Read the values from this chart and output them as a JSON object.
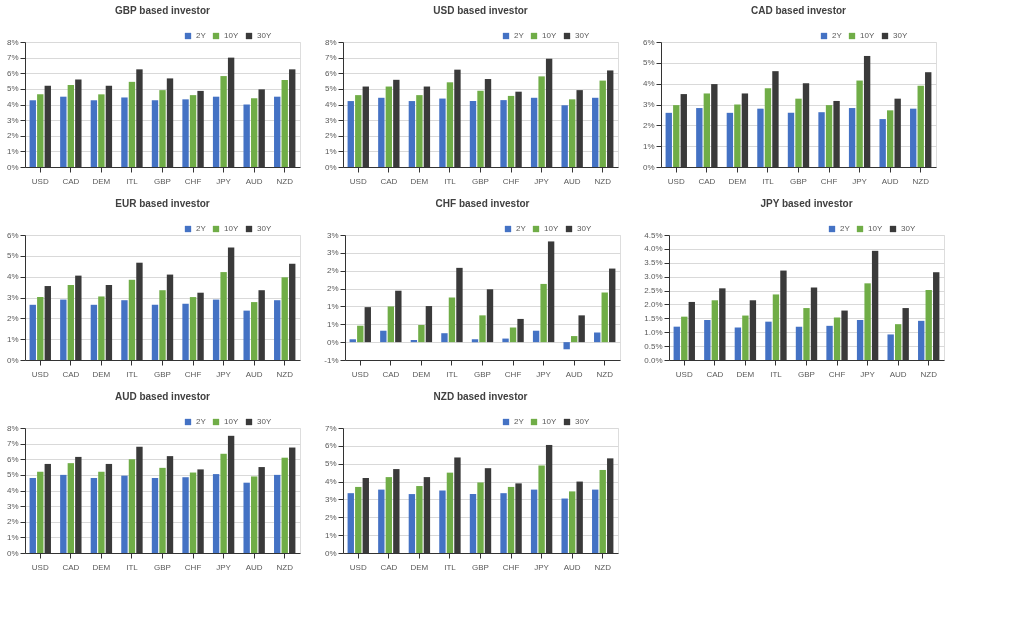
{
  "chart_data": [
    {
      "type": "bar",
      "title": "GBP based investor",
      "categories": [
        "USD",
        "CAD",
        "DEM",
        "ITL",
        "GBP",
        "CHF",
        "JPY",
        "AUD",
        "NZD"
      ],
      "grid": "y",
      "legend": "top right",
      "ylim": [
        0,
        8
      ],
      "yticks": [
        {
          "value": 0,
          "label": "0%"
        },
        {
          "value": 1,
          "label": "1%"
        },
        {
          "value": 2,
          "label": "2%"
        },
        {
          "value": 3,
          "label": "3%"
        },
        {
          "value": 4,
          "label": "4%"
        },
        {
          "value": 5,
          "label": "5%"
        },
        {
          "value": 6,
          "label": "6%"
        },
        {
          "value": 7,
          "label": "7%"
        },
        {
          "value": 8,
          "label": "8%"
        }
      ],
      "series": [
        {
          "name": "2Y",
          "color": "#4472c4",
          "values": [
            4.27,
            4.5,
            4.27,
            4.45,
            4.27,
            4.33,
            4.5,
            4.0,
            4.5
          ]
        },
        {
          "name": "10Y",
          "color": "#70ad47",
          "values": [
            4.65,
            5.25,
            4.65,
            5.45,
            4.92,
            4.6,
            5.82,
            4.4,
            5.57
          ]
        },
        {
          "name": "30Y",
          "color": "#3a3a3a",
          "values": [
            5.2,
            5.6,
            5.2,
            6.25,
            5.67,
            4.87,
            7.0,
            4.97,
            6.25
          ]
        }
      ]
    },
    {
      "type": "bar",
      "title": "USD based investor",
      "categories": [
        "USD",
        "CAD",
        "DEM",
        "ITL",
        "GBP",
        "CHF",
        "JPY",
        "AUD",
        "NZD"
      ],
      "grid": "y",
      "legend": "top right",
      "ylim": [
        0,
        8
      ],
      "yticks": [
        {
          "value": 0,
          "label": "0%"
        },
        {
          "value": 1,
          "label": "1%"
        },
        {
          "value": 2,
          "label": "2%"
        },
        {
          "value": 3,
          "label": "3%"
        },
        {
          "value": 4,
          "label": "4%"
        },
        {
          "value": 5,
          "label": "5%"
        },
        {
          "value": 6,
          "label": "6%"
        },
        {
          "value": 7,
          "label": "7%"
        },
        {
          "value": 8,
          "label": "8%"
        }
      ],
      "series": [
        {
          "name": "2Y",
          "color": "#4472c4",
          "values": [
            4.22,
            4.43,
            4.22,
            4.38,
            4.22,
            4.28,
            4.43,
            3.95,
            4.43
          ]
        },
        {
          "name": "10Y",
          "color": "#70ad47",
          "values": [
            4.6,
            5.15,
            4.6,
            5.42,
            4.88,
            4.55,
            5.8,
            4.33,
            5.53
          ]
        },
        {
          "name": "30Y",
          "color": "#3a3a3a",
          "values": [
            5.15,
            5.58,
            5.15,
            6.23,
            5.63,
            4.82,
            6.93,
            4.92,
            6.18
          ]
        }
      ]
    },
    {
      "type": "bar",
      "title": "CAD based investor",
      "categories": [
        "USD",
        "CAD",
        "DEM",
        "ITL",
        "GBP",
        "CHF",
        "JPY",
        "AUD",
        "NZD"
      ],
      "grid": "y",
      "legend": "top right",
      "ylim": [
        0,
        6
      ],
      "yticks": [
        {
          "value": 0,
          "label": "0%"
        },
        {
          "value": 1,
          "label": "1%"
        },
        {
          "value": 2,
          "label": "2%"
        },
        {
          "value": 3,
          "label": "3%"
        },
        {
          "value": 4,
          "label": "4%"
        },
        {
          "value": 5,
          "label": "5%"
        },
        {
          "value": 6,
          "label": "6%"
        }
      ],
      "series": [
        {
          "name": "2Y",
          "color": "#4472c4",
          "values": [
            2.6,
            2.83,
            2.6,
            2.8,
            2.6,
            2.63,
            2.83,
            2.3,
            2.8
          ]
        },
        {
          "name": "10Y",
          "color": "#70ad47",
          "values": [
            2.97,
            3.53,
            3.0,
            3.78,
            3.28,
            2.97,
            4.15,
            2.72,
            3.9
          ]
        },
        {
          "name": "30Y",
          "color": "#3a3a3a",
          "values": [
            3.5,
            3.98,
            3.53,
            4.6,
            4.02,
            3.17,
            5.33,
            3.28,
            4.55
          ]
        }
      ]
    },
    {
      "type": "bar",
      "title": "EUR based investor",
      "categories": [
        "USD",
        "CAD",
        "DEM",
        "ITL",
        "GBP",
        "CHF",
        "JPY",
        "AUD",
        "NZD"
      ],
      "grid": "y",
      "legend": "top right",
      "ylim": [
        0,
        6
      ],
      "yticks": [
        {
          "value": 0,
          "label": "0%"
        },
        {
          "value": 1,
          "label": "1%"
        },
        {
          "value": 2,
          "label": "2%"
        },
        {
          "value": 3,
          "label": "3%"
        },
        {
          "value": 4,
          "label": "4%"
        },
        {
          "value": 5,
          "label": "5%"
        },
        {
          "value": 6,
          "label": "6%"
        }
      ],
      "series": [
        {
          "name": "2Y",
          "color": "#4472c4",
          "values": [
            2.65,
            2.9,
            2.65,
            2.87,
            2.65,
            2.7,
            2.9,
            2.37,
            2.87
          ]
        },
        {
          "name": "10Y",
          "color": "#70ad47",
          "values": [
            3.02,
            3.6,
            3.05,
            3.85,
            3.35,
            3.02,
            4.22,
            2.78,
            3.97
          ]
        },
        {
          "name": "30Y",
          "color": "#3a3a3a",
          "values": [
            3.55,
            4.05,
            3.6,
            4.67,
            4.1,
            3.23,
            5.4,
            3.35,
            4.62
          ]
        }
      ]
    },
    {
      "type": "bar",
      "title": "CHF based investor",
      "categories": [
        "USD",
        "CAD",
        "DEM",
        "ITL",
        "GBP",
        "CHF",
        "JPY",
        "AUD",
        "NZD"
      ],
      "grid": "y",
      "legend": "top right",
      "ylim": [
        -0.5,
        3
      ],
      "yticks": [
        {
          "value": -0.5,
          "label": "-1%"
        },
        {
          "value": 0,
          "label": "0%"
        },
        {
          "value": 0.5,
          "label": "1%"
        },
        {
          "value": 1,
          "label": "1%"
        },
        {
          "value": 1.5,
          "label": "2%"
        },
        {
          "value": 2,
          "label": "2%"
        },
        {
          "value": 2.5,
          "label": "3%"
        },
        {
          "value": 3,
          "label": "3%"
        }
      ],
      "series": [
        {
          "name": "2Y",
          "color": "#4472c4",
          "values": [
            0.08,
            0.32,
            0.06,
            0.25,
            0.08,
            0.1,
            0.32,
            -0.2,
            0.27
          ]
        },
        {
          "name": "10Y",
          "color": "#70ad47",
          "values": [
            0.46,
            1.0,
            0.48,
            1.25,
            0.75,
            0.41,
            1.63,
            0.17,
            1.39
          ]
        },
        {
          "name": "30Y",
          "color": "#3a3a3a",
          "values": [
            0.98,
            1.44,
            1.01,
            2.08,
            1.48,
            0.65,
            2.82,
            0.75,
            2.06
          ]
        }
      ]
    },
    {
      "type": "bar",
      "title": "JPY based investor",
      "categories": [
        "USD",
        "CAD",
        "DEM",
        "ITL",
        "GBP",
        "CHF",
        "JPY",
        "AUD",
        "NZD"
      ],
      "grid": "y",
      "legend": "top right",
      "ylim": [
        0,
        4.5
      ],
      "yticks": [
        {
          "value": 0,
          "label": "0.0%"
        },
        {
          "value": 0.5,
          "label": "0.5%"
        },
        {
          "value": 1,
          "label": "1.0%"
        },
        {
          "value": 1.5,
          "label": "1.5%"
        },
        {
          "value": 2,
          "label": "2.0%"
        },
        {
          "value": 2.5,
          "label": "2.5%"
        },
        {
          "value": 3,
          "label": "3.0%"
        },
        {
          "value": 3.5,
          "label": "3.5%"
        },
        {
          "value": 4,
          "label": "4.0%"
        },
        {
          "value": 4.5,
          "label": "4.5%"
        }
      ],
      "series": [
        {
          "name": "2Y",
          "color": "#4472c4",
          "values": [
            1.2,
            1.44,
            1.17,
            1.38,
            1.2,
            1.23,
            1.44,
            0.92,
            1.41
          ]
        },
        {
          "name": "10Y",
          "color": "#70ad47",
          "values": [
            1.56,
            2.15,
            1.6,
            2.36,
            1.87,
            1.53,
            2.76,
            1.29,
            2.52
          ]
        },
        {
          "name": "30Y",
          "color": "#3a3a3a",
          "values": [
            2.09,
            2.58,
            2.15,
            3.22,
            2.61,
            1.78,
            3.93,
            1.87,
            3.16
          ]
        }
      ]
    },
    {
      "type": "bar",
      "title": "AUD based investor",
      "categories": [
        "USD",
        "CAD",
        "DEM",
        "ITL",
        "GBP",
        "CHF",
        "JPY",
        "AUD",
        "NZD"
      ],
      "grid": "y",
      "legend": "top right",
      "ylim": [
        0,
        8
      ],
      "yticks": [
        {
          "value": 0,
          "label": "0%"
        },
        {
          "value": 1,
          "label": "1%"
        },
        {
          "value": 2,
          "label": "2%"
        },
        {
          "value": 3,
          "label": "3%"
        },
        {
          "value": 4,
          "label": "4%"
        },
        {
          "value": 5,
          "label": "5%"
        },
        {
          "value": 6,
          "label": "6%"
        },
        {
          "value": 7,
          "label": "7%"
        },
        {
          "value": 8,
          "label": "8%"
        }
      ],
      "series": [
        {
          "name": "2Y",
          "color": "#4472c4",
          "values": [
            4.8,
            5.0,
            4.8,
            4.95,
            4.8,
            4.85,
            5.05,
            4.5,
            5.0
          ]
        },
        {
          "name": "10Y",
          "color": "#70ad47",
          "values": [
            5.2,
            5.75,
            5.2,
            6.0,
            5.45,
            5.15,
            6.35,
            4.9,
            6.1
          ]
        },
        {
          "name": "30Y",
          "color": "#3a3a3a",
          "values": [
            5.7,
            6.15,
            5.7,
            6.8,
            6.2,
            5.35,
            7.5,
            5.5,
            6.75
          ]
        }
      ]
    },
    {
      "type": "bar",
      "title": "NZD based investor",
      "categories": [
        "USD",
        "CAD",
        "DEM",
        "ITL",
        "GBP",
        "CHF",
        "JPY",
        "AUD",
        "NZD"
      ],
      "grid": "y",
      "legend": "top right",
      "ylim": [
        0,
        7
      ],
      "yticks": [
        {
          "value": 0,
          "label": "0%"
        },
        {
          "value": 1,
          "label": "1%"
        },
        {
          "value": 2,
          "label": "2%"
        },
        {
          "value": 3,
          "label": "3%"
        },
        {
          "value": 4,
          "label": "4%"
        },
        {
          "value": 5,
          "label": "5%"
        },
        {
          "value": 6,
          "label": "6%"
        },
        {
          "value": 7,
          "label": "7%"
        }
      ],
      "series": [
        {
          "name": "2Y",
          "color": "#4472c4",
          "values": [
            3.35,
            3.55,
            3.3,
            3.5,
            3.3,
            3.35,
            3.55,
            3.05,
            3.55
          ]
        },
        {
          "name": "10Y",
          "color": "#70ad47",
          "values": [
            3.7,
            4.25,
            3.75,
            4.5,
            3.95,
            3.7,
            4.9,
            3.45,
            4.65
          ]
        },
        {
          "name": "30Y",
          "color": "#3a3a3a",
          "values": [
            4.2,
            4.7,
            4.25,
            5.35,
            4.75,
            3.9,
            6.05,
            4.0,
            5.3
          ]
        }
      ]
    }
  ]
}
